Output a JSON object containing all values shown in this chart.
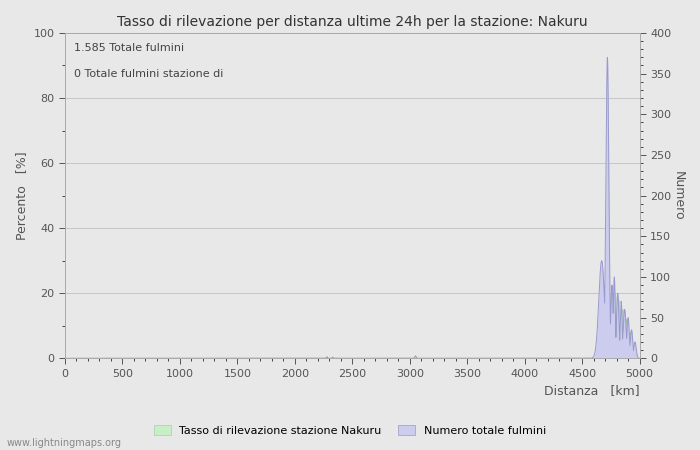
{
  "title": "Tasso di rilevazione per distanza ultime 24h per la stazione: Nakuru",
  "xlabel": "Distanza   [km]",
  "ylabel_left": "Percento   [%]",
  "ylabel_right": "Numero",
  "annotation1": "1.585 Totale fulmini",
  "annotation2": "0 Totale fulmini stazione di",
  "xlim": [
    0,
    5000
  ],
  "ylim_left": [
    0,
    100
  ],
  "ylim_right": [
    0,
    400
  ],
  "xticks": [
    0,
    500,
    1000,
    1500,
    2000,
    2500,
    3000,
    3500,
    4000,
    4500,
    5000
  ],
  "yticks_left": [
    0,
    20,
    40,
    60,
    80,
    100
  ],
  "yticks_right": [
    0,
    50,
    100,
    150,
    200,
    250,
    300,
    350,
    400
  ],
  "legend_label1": "Tasso di rilevazione stazione Nakuru",
  "legend_label2": "Numero totale fulmini",
  "watermark": "www.lightningmaps.org",
  "bg_color": "#e8e8e8",
  "plot_bg_color": "#ffffff",
  "grid_color": "#c0c0c0",
  "line_color_blue": "#9999cc",
  "fill_color_blue": "#ccccee",
  "fill_color_green": "#c8eec8",
  "text_color": "#555555",
  "title_color": "#333333"
}
